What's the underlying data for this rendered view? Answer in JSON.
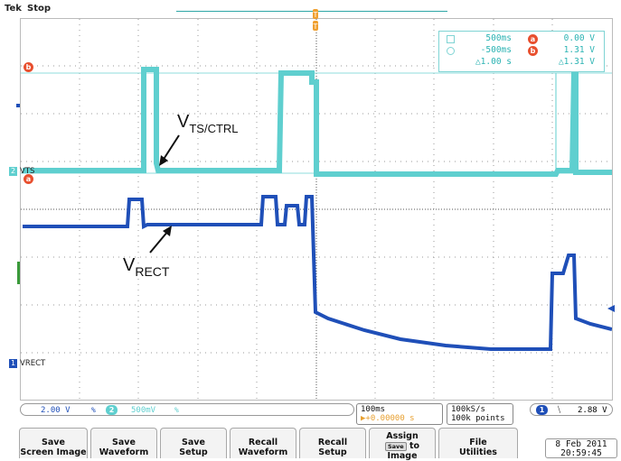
{
  "header": {
    "brand": "Tek",
    "run_state": "Stop"
  },
  "cursor_readout": {
    "row1": {
      "time": "500ms",
      "badge": "a",
      "value": "0.00 V"
    },
    "row2": {
      "time": "-500ms",
      "badge": "b",
      "value": "1.31 V"
    },
    "row3": {
      "time": "△1.00 s",
      "value": "△1.31 V"
    }
  },
  "annotations": {
    "vts_main": "V",
    "vts_sub": "TS/CTRL",
    "vrect_main": "V",
    "vrect_sub": "RECT"
  },
  "trace_markers": {
    "ch2_label": "VTS",
    "ch1_label": "VRECT",
    "ch2_num": "2",
    "ch1_num": "1",
    "cursor_a": "a",
    "cursor_b": "b"
  },
  "channel_bar": {
    "ch1_num": "1",
    "ch1_scale": "2.00 V",
    "ch1_bw": "%",
    "ch2_num": "2",
    "ch2_scale": "500mV",
    "ch2_bw": "%"
  },
  "timebase": {
    "scale": "100ms",
    "delay": "▶+0.00000 s"
  },
  "acquisition": {
    "rate": "100kS/s",
    "points": "100k points"
  },
  "trigger": {
    "source": "1",
    "slope": "⧹",
    "level": "2.88 V"
  },
  "softkeys": [
    {
      "line1": "Save",
      "line2": "Screen Image"
    },
    {
      "line1": "Save",
      "line2": "Waveform"
    },
    {
      "line1": "Save",
      "line2": "Setup"
    },
    {
      "line1": "Recall",
      "line2": "Waveform"
    },
    {
      "line1": "Recall",
      "line2": "Setup"
    },
    {
      "line1": "Assign",
      "line2mid": "Save",
      "line2": "to",
      "line3": "Image"
    },
    {
      "line1": "File",
      "line2": "Utilities"
    }
  ],
  "datetime": {
    "date": "8 Feb 2011",
    "time": "20:59:45"
  },
  "colors": {
    "ch1": "#1f4fb8",
    "ch2": "#5fcfcf",
    "cursor_badge": "#e8502f"
  }
}
